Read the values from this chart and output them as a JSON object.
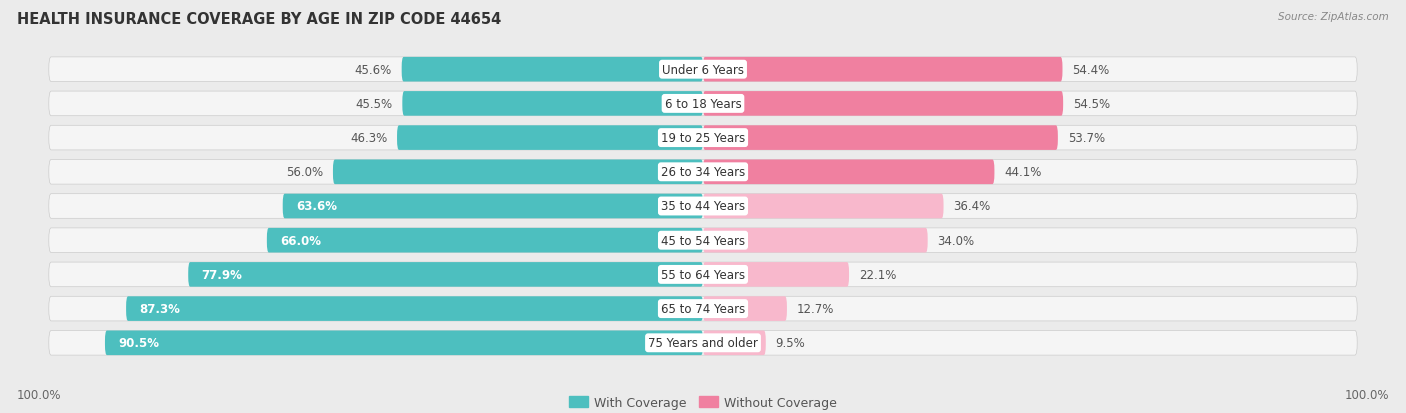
{
  "title": "HEALTH INSURANCE COVERAGE BY AGE IN ZIP CODE 44654",
  "source": "Source: ZipAtlas.com",
  "categories": [
    "Under 6 Years",
    "6 to 18 Years",
    "19 to 25 Years",
    "26 to 34 Years",
    "35 to 44 Years",
    "45 to 54 Years",
    "55 to 64 Years",
    "65 to 74 Years",
    "75 Years and older"
  ],
  "with_coverage": [
    45.6,
    45.5,
    46.3,
    56.0,
    63.6,
    66.0,
    77.9,
    87.3,
    90.5
  ],
  "without_coverage": [
    54.4,
    54.5,
    53.7,
    44.1,
    36.4,
    34.0,
    22.1,
    12.7,
    9.5
  ],
  "color_with": "#4DBFBF",
  "color_without": "#F080A0",
  "color_without_light": "#F8B8CC",
  "bg_color": "#ebebeb",
  "row_bg": "#f5f5f5",
  "title_fontsize": 10.5,
  "source_fontsize": 7.5,
  "legend_fontsize": 9,
  "label_fontsize": 8.5,
  "pct_threshold_white": 60
}
